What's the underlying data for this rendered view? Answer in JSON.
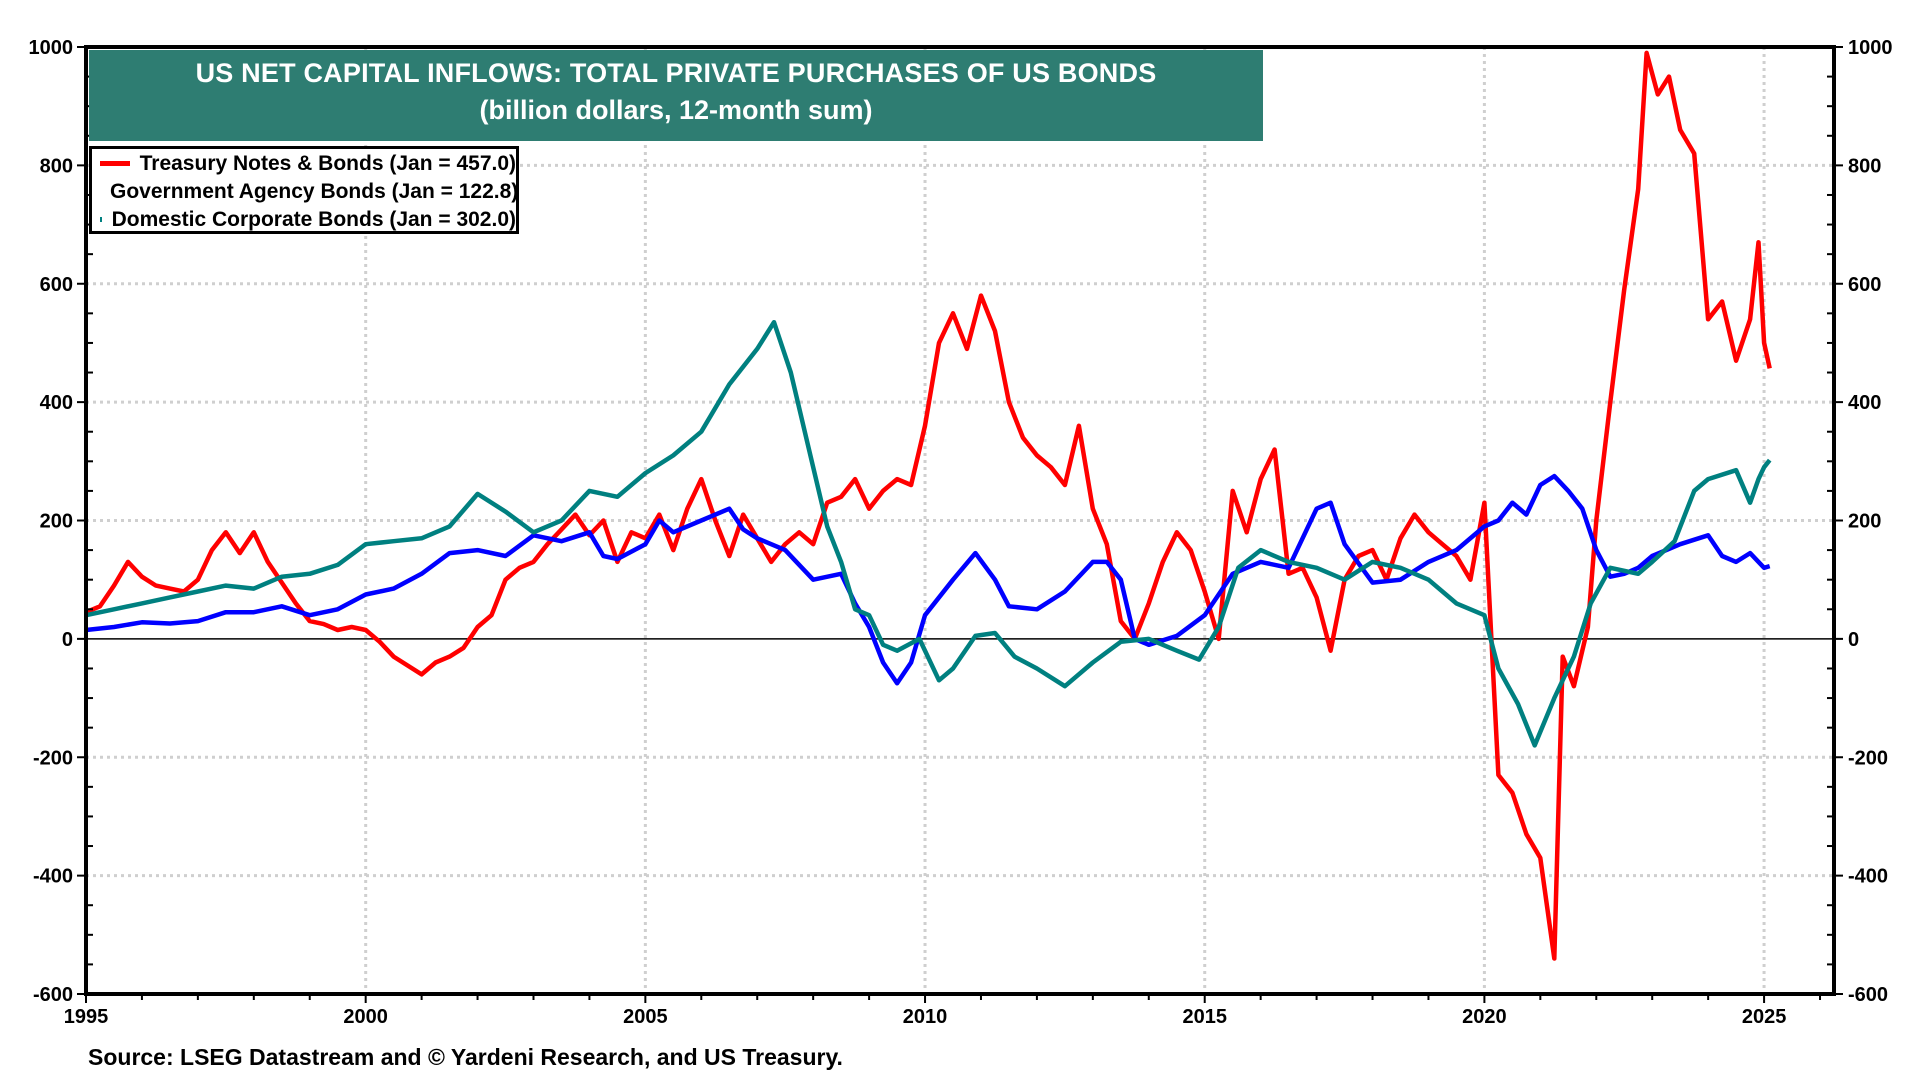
{
  "chart_data": {
    "type": "line",
    "title": "US NET CAPITAL INFLOWS: TOTAL PRIVATE PURCHASES OF US BONDS",
    "subtitle": "(billion dollars, 12-month sum)",
    "xlabel": "",
    "ylabel": "",
    "xlim": [
      1995,
      2026.25
    ],
    "ylim": [
      -600,
      1000
    ],
    "x_ticks": [
      1995,
      2000,
      2005,
      2010,
      2015,
      2020,
      2025
    ],
    "y_ticks": [
      -600,
      -400,
      -200,
      0,
      200,
      400,
      600,
      800,
      1000
    ],
    "grid": true,
    "dual_y_axis": true,
    "legend_position": "top-left",
    "source": "Source: LSEG Datastream and © Yardeni Research, and US Treasury.",
    "series": [
      {
        "name": "Treasury Notes & Bonds (Jan = 457.0)",
        "color": "#ff0000",
        "points": [
          [
            1995.0,
            45
          ],
          [
            1995.25,
            55
          ],
          [
            1995.5,
            90
          ],
          [
            1995.75,
            130
          ],
          [
            1996.0,
            105
          ],
          [
            1996.25,
            90
          ],
          [
            1996.5,
            85
          ],
          [
            1996.75,
            80
          ],
          [
            1997.0,
            100
          ],
          [
            1997.25,
            150
          ],
          [
            1997.5,
            180
          ],
          [
            1997.75,
            145
          ],
          [
            1998.0,
            180
          ],
          [
            1998.25,
            130
          ],
          [
            1998.5,
            95
          ],
          [
            1998.75,
            60
          ],
          [
            1999.0,
            30
          ],
          [
            1999.25,
            25
          ],
          [
            1999.5,
            15
          ],
          [
            1999.75,
            20
          ],
          [
            2000.0,
            15
          ],
          [
            2000.25,
            -5
          ],
          [
            2000.5,
            -30
          ],
          [
            2000.75,
            -45
          ],
          [
            2001.0,
            -60
          ],
          [
            2001.25,
            -40
          ],
          [
            2001.5,
            -30
          ],
          [
            2001.75,
            -15
          ],
          [
            2002.0,
            20
          ],
          [
            2002.25,
            40
          ],
          [
            2002.5,
            100
          ],
          [
            2002.75,
            120
          ],
          [
            2003.0,
            130
          ],
          [
            2003.25,
            160
          ],
          [
            2003.5,
            185
          ],
          [
            2003.75,
            210
          ],
          [
            2004.0,
            175
          ],
          [
            2004.25,
            200
          ],
          [
            2004.5,
            130
          ],
          [
            2004.75,
            180
          ],
          [
            2005.0,
            170
          ],
          [
            2005.25,
            210
          ],
          [
            2005.5,
            150
          ],
          [
            2005.75,
            220
          ],
          [
            2006.0,
            270
          ],
          [
            2006.25,
            200
          ],
          [
            2006.5,
            140
          ],
          [
            2006.75,
            210
          ],
          [
            2007.0,
            170
          ],
          [
            2007.25,
            130
          ],
          [
            2007.5,
            160
          ],
          [
            2007.75,
            180
          ],
          [
            2008.0,
            160
          ],
          [
            2008.25,
            230
          ],
          [
            2008.5,
            240
          ],
          [
            2008.75,
            270
          ],
          [
            2009.0,
            220
          ],
          [
            2009.25,
            250
          ],
          [
            2009.5,
            270
          ],
          [
            2009.75,
            260
          ],
          [
            2010.0,
            360
          ],
          [
            2010.25,
            500
          ],
          [
            2010.5,
            550
          ],
          [
            2010.75,
            490
          ],
          [
            2011.0,
            580
          ],
          [
            2011.25,
            520
          ],
          [
            2011.5,
            400
          ],
          [
            2011.75,
            340
          ],
          [
            2012.0,
            310
          ],
          [
            2012.25,
            290
          ],
          [
            2012.5,
            260
          ],
          [
            2012.75,
            360
          ],
          [
            2013.0,
            220
          ],
          [
            2013.25,
            160
          ],
          [
            2013.5,
            30
          ],
          [
            2013.75,
            0
          ],
          [
            2014.0,
            60
          ],
          [
            2014.25,
            130
          ],
          [
            2014.5,
            180
          ],
          [
            2014.75,
            150
          ],
          [
            2015.0,
            80
          ],
          [
            2015.25,
            0
          ],
          [
            2015.5,
            250
          ],
          [
            2015.75,
            180
          ],
          [
            2016.0,
            270
          ],
          [
            2016.25,
            320
          ],
          [
            2016.5,
            110
          ],
          [
            2016.75,
            120
          ],
          [
            2017.0,
            70
          ],
          [
            2017.25,
            -20
          ],
          [
            2017.5,
            100
          ],
          [
            2017.75,
            140
          ],
          [
            2018.0,
            150
          ],
          [
            2018.25,
            100
          ],
          [
            2018.5,
            170
          ],
          [
            2018.75,
            210
          ],
          [
            2019.0,
            180
          ],
          [
            2019.25,
            160
          ],
          [
            2019.5,
            140
          ],
          [
            2019.75,
            100
          ],
          [
            2020.0,
            230
          ],
          [
            2020.25,
            -230
          ],
          [
            2020.5,
            -260
          ],
          [
            2020.75,
            -330
          ],
          [
            2021.0,
            -370
          ],
          [
            2021.25,
            -540
          ],
          [
            2021.4,
            -30
          ],
          [
            2021.6,
            -80
          ],
          [
            2021.85,
            20
          ],
          [
            2022.0,
            200
          ],
          [
            2022.25,
            400
          ],
          [
            2022.5,
            590
          ],
          [
            2022.75,
            760
          ],
          [
            2022.9,
            990
          ],
          [
            2023.1,
            920
          ],
          [
            2023.3,
            950
          ],
          [
            2023.5,
            860
          ],
          [
            2023.75,
            820
          ],
          [
            2024.0,
            540
          ],
          [
            2024.25,
            570
          ],
          [
            2024.5,
            470
          ],
          [
            2024.75,
            540
          ],
          [
            2024.9,
            670
          ],
          [
            2025.0,
            500
          ],
          [
            2025.1,
            457
          ]
        ]
      },
      {
        "name": "Government Agency Bonds (Jan = 122.8)",
        "color": "#0000ff",
        "points": [
          [
            1995.0,
            15
          ],
          [
            1995.5,
            20
          ],
          [
            1996.0,
            28
          ],
          [
            1996.5,
            26
          ],
          [
            1997.0,
            30
          ],
          [
            1997.5,
            45
          ],
          [
            1998.0,
            45
          ],
          [
            1998.5,
            55
          ],
          [
            1999.0,
            40
          ],
          [
            1999.5,
            50
          ],
          [
            2000.0,
            75
          ],
          [
            2000.5,
            85
          ],
          [
            2001.0,
            110
          ],
          [
            2001.5,
            145
          ],
          [
            2002.0,
            150
          ],
          [
            2002.5,
            140
          ],
          [
            2003.0,
            175
          ],
          [
            2003.5,
            165
          ],
          [
            2004.0,
            180
          ],
          [
            2004.25,
            140
          ],
          [
            2004.5,
            135
          ],
          [
            2005.0,
            160
          ],
          [
            2005.25,
            200
          ],
          [
            2005.5,
            180
          ],
          [
            2006.0,
            200
          ],
          [
            2006.5,
            220
          ],
          [
            2006.75,
            185
          ],
          [
            2007.0,
            170
          ],
          [
            2007.5,
            150
          ],
          [
            2008.0,
            100
          ],
          [
            2008.5,
            110
          ],
          [
            2008.75,
            60
          ],
          [
            2009.0,
            20
          ],
          [
            2009.25,
            -40
          ],
          [
            2009.5,
            -75
          ],
          [
            2009.75,
            -40
          ],
          [
            2010.0,
            40
          ],
          [
            2010.5,
            100
          ],
          [
            2010.9,
            145
          ],
          [
            2011.25,
            100
          ],
          [
            2011.5,
            55
          ],
          [
            2012.0,
            50
          ],
          [
            2012.5,
            80
          ],
          [
            2013.0,
            130
          ],
          [
            2013.25,
            130
          ],
          [
            2013.5,
            100
          ],
          [
            2013.75,
            0
          ],
          [
            2014.0,
            -10
          ],
          [
            2014.5,
            5
          ],
          [
            2015.0,
            40
          ],
          [
            2015.5,
            110
          ],
          [
            2016.0,
            130
          ],
          [
            2016.5,
            120
          ],
          [
            2017.0,
            220
          ],
          [
            2017.25,
            230
          ],
          [
            2017.5,
            160
          ],
          [
            2018.0,
            95
          ],
          [
            2018.5,
            100
          ],
          [
            2019.0,
            130
          ],
          [
            2019.5,
            150
          ],
          [
            2020.0,
            190
          ],
          [
            2020.25,
            200
          ],
          [
            2020.5,
            230
          ],
          [
            2020.75,
            210
          ],
          [
            2021.0,
            260
          ],
          [
            2021.25,
            275
          ],
          [
            2021.5,
            250
          ],
          [
            2021.75,
            220
          ],
          [
            2022.0,
            150
          ],
          [
            2022.25,
            105
          ],
          [
            2022.5,
            110
          ],
          [
            2022.75,
            120
          ],
          [
            2023.0,
            140
          ],
          [
            2023.5,
            160
          ],
          [
            2024.0,
            175
          ],
          [
            2024.25,
            140
          ],
          [
            2024.5,
            130
          ],
          [
            2024.75,
            145
          ],
          [
            2025.0,
            120
          ],
          [
            2025.1,
            123
          ]
        ]
      },
      {
        "name": "Domestic Corporate Bonds (Jan = 302.0)",
        "color": "#008080",
        "points": [
          [
            1995.0,
            40
          ],
          [
            1995.5,
            50
          ],
          [
            1996.0,
            60
          ],
          [
            1996.5,
            70
          ],
          [
            1997.0,
            80
          ],
          [
            1997.5,
            90
          ],
          [
            1998.0,
            85
          ],
          [
            1998.5,
            105
          ],
          [
            1999.0,
            110
          ],
          [
            1999.5,
            125
          ],
          [
            2000.0,
            160
          ],
          [
            2000.5,
            165
          ],
          [
            2001.0,
            170
          ],
          [
            2001.5,
            190
          ],
          [
            2002.0,
            245
          ],
          [
            2002.5,
            215
          ],
          [
            2003.0,
            180
          ],
          [
            2003.5,
            200
          ],
          [
            2004.0,
            250
          ],
          [
            2004.5,
            240
          ],
          [
            2005.0,
            280
          ],
          [
            2005.5,
            310
          ],
          [
            2006.0,
            350
          ],
          [
            2006.5,
            430
          ],
          [
            2007.0,
            490
          ],
          [
            2007.3,
            535
          ],
          [
            2007.6,
            450
          ],
          [
            2007.9,
            330
          ],
          [
            2008.25,
            190
          ],
          [
            2008.5,
            130
          ],
          [
            2008.75,
            50
          ],
          [
            2009.0,
            40
          ],
          [
            2009.25,
            -10
          ],
          [
            2009.5,
            -20
          ],
          [
            2009.9,
            0
          ],
          [
            2010.25,
            -70
          ],
          [
            2010.5,
            -50
          ],
          [
            2010.9,
            5
          ],
          [
            2011.25,
            10
          ],
          [
            2011.6,
            -30
          ],
          [
            2012.0,
            -50
          ],
          [
            2012.5,
            -80
          ],
          [
            2013.0,
            -40
          ],
          [
            2013.5,
            -5
          ],
          [
            2014.0,
            0
          ],
          [
            2014.5,
            -20
          ],
          [
            2014.9,
            -35
          ],
          [
            2015.25,
            20
          ],
          [
            2015.6,
            120
          ],
          [
            2016.0,
            150
          ],
          [
            2016.5,
            130
          ],
          [
            2017.0,
            120
          ],
          [
            2017.5,
            100
          ],
          [
            2018.0,
            130
          ],
          [
            2018.5,
            120
          ],
          [
            2019.0,
            100
          ],
          [
            2019.5,
            60
          ],
          [
            2020.0,
            40
          ],
          [
            2020.25,
            -50
          ],
          [
            2020.6,
            -110
          ],
          [
            2020.9,
            -180
          ],
          [
            2021.25,
            -100
          ],
          [
            2021.6,
            -30
          ],
          [
            2021.9,
            60
          ],
          [
            2022.25,
            120
          ],
          [
            2022.75,
            110
          ],
          [
            2023.0,
            130
          ],
          [
            2023.4,
            165
          ],
          [
            2023.75,
            250
          ],
          [
            2024.0,
            270
          ],
          [
            2024.5,
            285
          ],
          [
            2024.75,
            230
          ],
          [
            2024.9,
            270
          ],
          [
            2025.0,
            290
          ],
          [
            2025.1,
            302
          ]
        ]
      }
    ]
  },
  "legend": {
    "items": [
      {
        "label": "Treasury Notes & Bonds (Jan = 457.0)",
        "color": "#ff0000"
      },
      {
        "label": "Government Agency Bonds (Jan = 122.8)",
        "color": "#0000ff"
      },
      {
        "label": "Domestic Corporate Bonds (Jan = 302.0)",
        "color": "#008080"
      }
    ]
  },
  "header": {
    "title": "US NET CAPITAL INFLOWS: TOTAL PRIVATE PURCHASES OF US BONDS",
    "subtitle": "(billion dollars, 12-month sum)",
    "background_color": "#2e7d72"
  },
  "footer": {
    "source": "Source: LSEG Datastream and © Yardeni Research, and US Treasury."
  }
}
